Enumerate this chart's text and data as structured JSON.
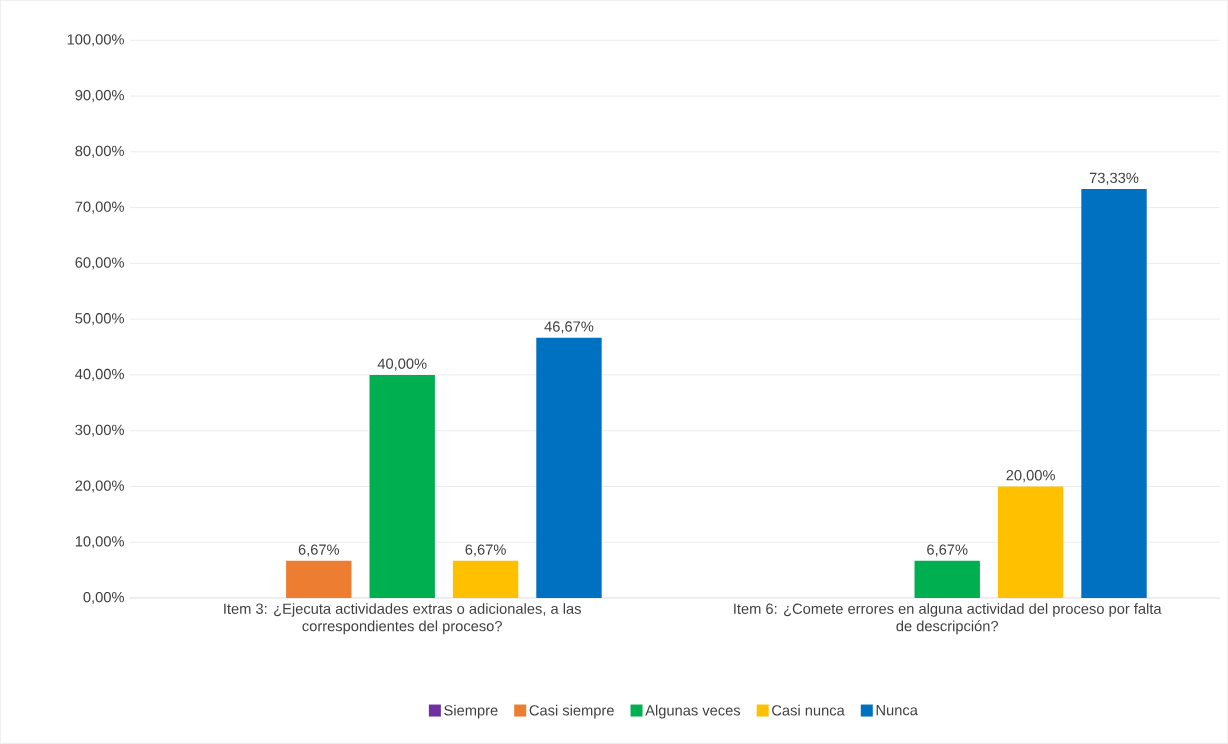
{
  "chart_data": {
    "type": "bar",
    "categories": [
      "Item 3: ¿Ejecuta actividades extras o adicionales, a las correspondientes del proceso?",
      "Item 6: ¿Comete errores en alguna actividad del proceso por falta de descripción?"
    ],
    "series": [
      {
        "name": "Siempre",
        "color": "#7030a0",
        "values": [
          null,
          null
        ],
        "value_labels": [
          null,
          null
        ]
      },
      {
        "name": "Casi siempre",
        "color": "#ed7d31",
        "values": [
          6.67,
          null
        ],
        "value_labels": [
          "6,67%",
          null
        ]
      },
      {
        "name": "Algunas veces",
        "color": "#00b050",
        "values": [
          40.0,
          6.67
        ],
        "value_labels": [
          "40,00%",
          "6,67%"
        ]
      },
      {
        "name": "Casi nunca",
        "color": "#ffc000",
        "values": [
          6.67,
          20.0
        ],
        "value_labels": [
          "6,67%",
          "20,00%"
        ]
      },
      {
        "name": "Nunca",
        "color": "#0070c0",
        "values": [
          46.67,
          73.33
        ],
        "value_labels": [
          "46,67%",
          "73,33%"
        ]
      }
    ],
    "ylim": [
      0,
      100
    ],
    "yticks": [
      {
        "value": 0,
        "label": "0,00%"
      },
      {
        "value": 10,
        "label": "10,00%"
      },
      {
        "value": 20,
        "label": "20,00%"
      },
      {
        "value": 30,
        "label": "30,00%"
      },
      {
        "value": 40,
        "label": "40,00%"
      },
      {
        "value": 50,
        "label": "50,00%"
      },
      {
        "value": 60,
        "label": "60,00%"
      },
      {
        "value": 70,
        "label": "70,00%"
      },
      {
        "value": 80,
        "label": "80,00%"
      },
      {
        "value": 90,
        "label": "90,00%"
      },
      {
        "value": 100,
        "label": "100,00%"
      }
    ],
    "grid": "y",
    "legend": "bottom"
  }
}
